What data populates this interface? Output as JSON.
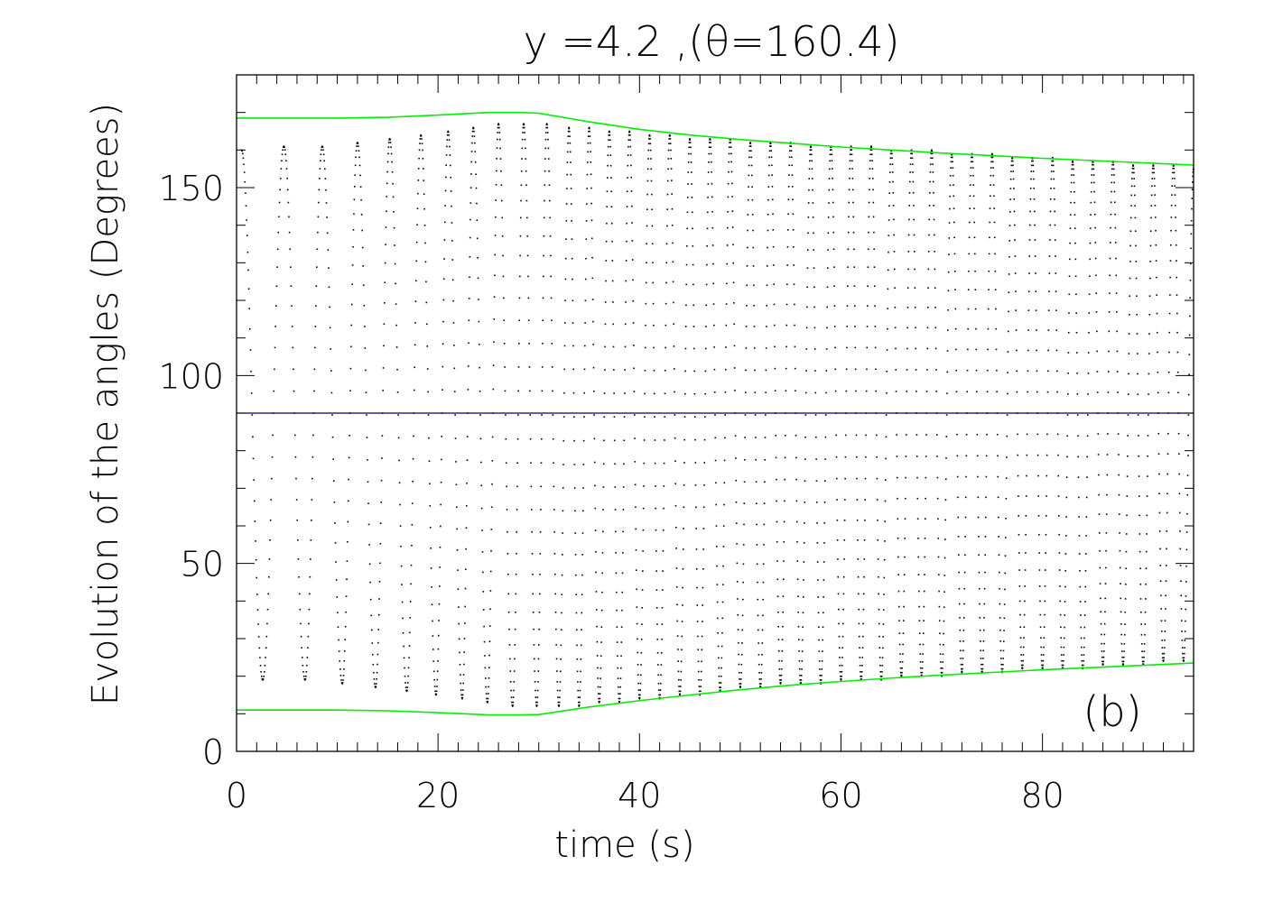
{
  "chart_data": {
    "type": "scatter",
    "title": "y =4.2 ,(θ=160.4)",
    "xlabel": "time (s)",
    "ylabel": "Evolution of the angles (Degrees)",
    "panel_label": "(b)",
    "xlim": [
      0,
      95
    ],
    "ylim": [
      0,
      180
    ],
    "x_ticks": [
      0,
      20,
      40,
      60,
      80
    ],
    "y_ticks": [
      0,
      50,
      100,
      150
    ],
    "x_minor_step": 2,
    "y_minor_step": 10,
    "grid": false,
    "legend": "none",
    "colors": {
      "points": "#000000",
      "envelope": "#00ee00",
      "midline": "#000080",
      "axes": "#000000"
    },
    "midline_y": 90,
    "oscillation": {
      "name": "",
      "peak_times": [
        0.5,
        4.7,
        8.5,
        12.0,
        15.2,
        18.3,
        21.0,
        23.5,
        26.0,
        28.5,
        30.8,
        33.0,
        35.0,
        37.0,
        39.0,
        41.0,
        43.0,
        45.0,
        47.0,
        49.0,
        51.0,
        53.0,
        55.0,
        57.0,
        59.0,
        61.0,
        63.0,
        65.0,
        67.0,
        69.0,
        71.0,
        73.0,
        75.0,
        77.0,
        79.0,
        81.0,
        83.0,
        85.0,
        87.0,
        89.0,
        91.0,
        93.0,
        95.0
      ],
      "trough_times": [
        2.6,
        6.8,
        10.5,
        13.8,
        16.9,
        19.8,
        22.4,
        24.9,
        27.4,
        29.8,
        32.0,
        34.0,
        36.0,
        38.0,
        40.0,
        42.0,
        44.0,
        46.0,
        48.0,
        50.0,
        52.0,
        54.0,
        56.0,
        58.0,
        60.0,
        62.0,
        64.0,
        66.0,
        68.0,
        70.0,
        72.0,
        74.0,
        76.0,
        78.0,
        80.0,
        82.0,
        84.0,
        86.0,
        88.0,
        90.0,
        92.0,
        94.0
      ],
      "peak_values": [
        160,
        161,
        161,
        162,
        163,
        164,
        165,
        166,
        167,
        167,
        167,
        166,
        166,
        165,
        165,
        164,
        164,
        163,
        163,
        163,
        162,
        162,
        162,
        161,
        161,
        161,
        161,
        160,
        160,
        160,
        159,
        159,
        159,
        158,
        158,
        158,
        157,
        157,
        157,
        156,
        156,
        156,
        155
      ],
      "trough_values": [
        19,
        19,
        18,
        17,
        16,
        15,
        14,
        13,
        12,
        12,
        12,
        12,
        13,
        13,
        14,
        14,
        15,
        15,
        16,
        17,
        17,
        18,
        18,
        18,
        19,
        19,
        19,
        20,
        20,
        20,
        21,
        21,
        21,
        22,
        22,
        22,
        22,
        23,
        23,
        23,
        24,
        24
      ]
    },
    "envelope_upper": {
      "x": [
        0,
        10,
        15,
        20,
        25,
        28,
        30,
        35,
        40,
        45,
        50,
        55,
        60,
        65,
        70,
        75,
        80,
        85,
        90,
        95
      ],
      "y": [
        168.5,
        168.5,
        168.7,
        169.3,
        170.0,
        170.0,
        169.8,
        167.5,
        165.5,
        164.0,
        162.8,
        161.8,
        160.8,
        160.0,
        159.2,
        158.5,
        157.8,
        157.2,
        156.6,
        156.0
      ]
    },
    "envelope_lower": {
      "x": [
        0,
        10,
        15,
        20,
        25,
        28,
        30,
        35,
        40,
        45,
        50,
        55,
        60,
        65,
        70,
        75,
        80,
        85,
        90,
        95
      ],
      "y": [
        11.0,
        11.0,
        10.8,
        10.3,
        9.7,
        9.7,
        9.8,
        11.8,
        13.5,
        15.0,
        16.4,
        17.6,
        18.6,
        19.5,
        20.3,
        21.0,
        21.7,
        22.3,
        22.9,
        23.5
      ]
    }
  }
}
